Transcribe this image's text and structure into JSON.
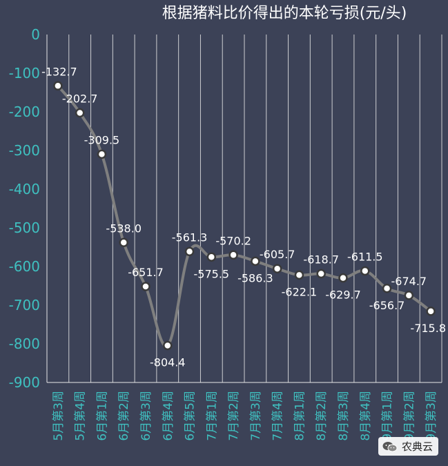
{
  "chart_data": {
    "type": "line",
    "title": "根据猪料比价得出的本轮亏损(元/头)",
    "xlabel": "",
    "ylabel": "",
    "ylim": [
      -900,
      0
    ],
    "yticks": [
      0,
      -100,
      -200,
      -300,
      -400,
      -500,
      -600,
      -700,
      -800,
      -900
    ],
    "grid": "vertical",
    "categories": [
      "5月第3周",
      "5月第4周",
      "6月第1周",
      "6月第2周",
      "6月第3周",
      "6月第4周",
      "6月第5周",
      "7月第1周",
      "7月第2周",
      "7月第3周",
      "7月第4周",
      "8月第1周",
      "8月第2周",
      "8月第3周",
      "8月第4周",
      "9月第1周",
      "9月第2周",
      "9月第3周"
    ],
    "series": [
      {
        "values": [
          -132.7,
          -202.7,
          -309.5,
          -538.0,
          -651.7,
          -804.4,
          -561.3,
          -575.5,
          -570.2,
          -586.3,
          -605.7,
          -622.1,
          -618.7,
          -629.7,
          -611.5,
          -656.7,
          -674.7,
          -715.8
        ],
        "labels": [
          "-132.7",
          "-202.7",
          "-309.5",
          "-538.0",
          "-651.7",
          "-804.4",
          "-561.3",
          "-575.5",
          "-570.2",
          "-586.3",
          "-605.7",
          "-622.1",
          "-618.7",
          "-629.7",
          "-611.5",
          "-656.7",
          "-674.7",
          "-715.8"
        ],
        "color": "#7f7f7f"
      }
    ],
    "colors": {
      "background": "#3c4257",
      "tick_text": "#3fc0c0",
      "title_text": "#ffffff",
      "grid": "#e8e8e8",
      "point_fill": "#ffffff"
    }
  },
  "watermark": {
    "icon": "wechat-icon",
    "text": "农典云"
  }
}
